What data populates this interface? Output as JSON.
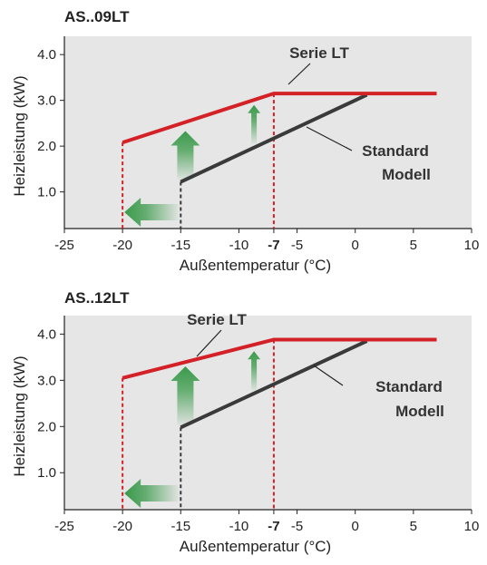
{
  "chart_data": [
    {
      "type": "line",
      "title": "AS..09LT",
      "xlabel": "Außentemperatur (°C)",
      "ylabel": "Heizleistung (kW)",
      "xlim": [
        -25,
        10
      ],
      "ylim": [
        0.2,
        4.4
      ],
      "x_ticks": [
        "-25",
        "-20",
        "-15",
        "-10",
        "-7",
        "-5",
        "0",
        "5",
        "10"
      ],
      "x_tick_values": [
        -25,
        -20,
        -15,
        -10,
        -7,
        -5,
        0,
        5,
        10
      ],
      "highlight_tick": "-7",
      "y_ticks": [
        "1.0",
        "2.0",
        "3.0",
        "4.0"
      ],
      "y_tick_values": [
        1.0,
        2.0,
        3.0,
        4.0
      ],
      "grid": false,
      "series": [
        {
          "name": "Serie LT",
          "color": "#d42027",
          "points": [
            [
              -20,
              2.08
            ],
            [
              -7,
              3.15
            ],
            [
              7,
              3.15
            ]
          ]
        },
        {
          "name": "Standard Modell",
          "color": "#3a3a3a",
          "points": [
            [
              -15,
              1.22
            ],
            [
              1,
              3.12
            ]
          ]
        }
      ],
      "annotations": [
        {
          "text": "Serie LT",
          "lines": [
            "Serie LT"
          ]
        },
        {
          "text": "Standard Modell",
          "lines": [
            "Standard",
            "Modell"
          ]
        }
      ],
      "colors": {
        "panel": "#e6e6e6",
        "lt": "#d42027",
        "std": "#3a3a3a",
        "arrow": "#3a9a4a"
      }
    },
    {
      "type": "line",
      "title": "AS..12LT",
      "xlabel": "Außentemperatur (°C)",
      "ylabel": "Heizleistung (kW)",
      "xlim": [
        -25,
        10
      ],
      "ylim": [
        0.2,
        4.4
      ],
      "x_ticks": [
        "-25",
        "-20",
        "-15",
        "-10",
        "-7",
        "-5",
        "0",
        "5",
        "10"
      ],
      "x_tick_values": [
        -25,
        -20,
        -15,
        -10,
        -7,
        -5,
        0,
        5,
        10
      ],
      "highlight_tick": "-7",
      "y_ticks": [
        "1.0",
        "2.0",
        "3.0",
        "4.0"
      ],
      "y_tick_values": [
        1.0,
        2.0,
        3.0,
        4.0
      ],
      "grid": false,
      "series": [
        {
          "name": "Serie LT",
          "color": "#d42027",
          "points": [
            [
              -20,
              3.05
            ],
            [
              -7,
              3.88
            ],
            [
              7,
              3.88
            ]
          ]
        },
        {
          "name": "Standard Modell",
          "color": "#3a3a3a",
          "points": [
            [
              -15,
              1.98
            ],
            [
              1,
              3.85
            ]
          ]
        }
      ],
      "annotations": [
        {
          "text": "Serie LT",
          "lines": [
            "Serie LT"
          ]
        },
        {
          "text": "Standard Modell",
          "lines": [
            "Standard",
            "Modell"
          ]
        }
      ],
      "colors": {
        "panel": "#e6e6e6",
        "lt": "#d42027",
        "std": "#3a3a3a",
        "arrow": "#3a9a4a"
      }
    }
  ]
}
